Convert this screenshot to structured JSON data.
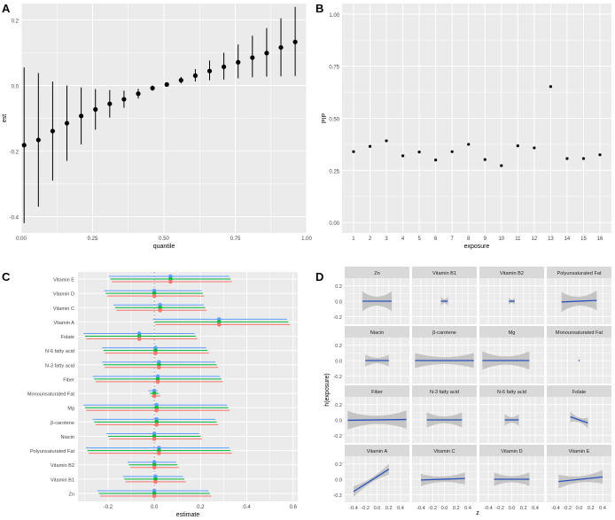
{
  "colors": {
    "panel_bg": "#ebebeb",
    "grid": "#ffffff",
    "strip_bg": "#d9d9d9",
    "point": "#000000",
    "line_blue": "#2a52be",
    "band": "#bdbdbd",
    "red": "#f8766d",
    "green": "#00ba38",
    "blue": "#619cff"
  },
  "chart_data": [
    {
      "panel": "A",
      "type": "scatter",
      "title": "",
      "xlabel": "quantile",
      "ylabel": "est",
      "xlim": [
        0,
        1
      ],
      "ylim": [
        -0.45,
        0.25
      ],
      "xticks": [
        "0.00",
        "0.25",
        "0.50",
        "0.75",
        "1.00"
      ],
      "yticks": [
        "-0.4",
        "-0.2",
        "0.0",
        "0.2"
      ],
      "points": [
        {
          "q": 0.01,
          "est": -0.182,
          "lo": -0.42,
          "hi": 0.055
        },
        {
          "q": 0.06,
          "est": -0.166,
          "lo": -0.37,
          "hi": 0.038
        },
        {
          "q": 0.11,
          "est": -0.139,
          "lo": -0.29,
          "hi": 0.012
        },
        {
          "q": 0.16,
          "est": -0.115,
          "lo": -0.23,
          "hi": 0.0
        },
        {
          "q": 0.21,
          "est": -0.093,
          "lo": -0.18,
          "hi": -0.006
        },
        {
          "q": 0.26,
          "est": -0.073,
          "lo": -0.135,
          "hi": -0.011
        },
        {
          "q": 0.31,
          "est": -0.056,
          "lo": -0.098,
          "hi": -0.014
        },
        {
          "q": 0.36,
          "est": -0.042,
          "lo": -0.068,
          "hi": -0.016
        },
        {
          "q": 0.41,
          "est": -0.025,
          "lo": -0.04,
          "hi": -0.01
        },
        {
          "q": 0.46,
          "est": -0.008,
          "lo": -0.016,
          "hi": 0.0
        },
        {
          "q": 0.51,
          "est": 0.003,
          "lo": 0.0,
          "hi": 0.006
        },
        {
          "q": 0.56,
          "est": 0.016,
          "lo": 0.006,
          "hi": 0.026
        },
        {
          "q": 0.61,
          "est": 0.03,
          "lo": 0.012,
          "hi": 0.05
        },
        {
          "q": 0.66,
          "est": 0.044,
          "lo": 0.016,
          "hi": 0.076
        },
        {
          "q": 0.71,
          "est": 0.057,
          "lo": 0.018,
          "hi": 0.1
        },
        {
          "q": 0.76,
          "est": 0.071,
          "lo": 0.022,
          "hi": 0.125
        },
        {
          "q": 0.81,
          "est": 0.085,
          "lo": 0.025,
          "hi": 0.152
        },
        {
          "q": 0.86,
          "est": 0.099,
          "lo": 0.027,
          "hi": 0.175
        },
        {
          "q": 0.91,
          "est": 0.116,
          "lo": 0.028,
          "hi": 0.205
        },
        {
          "q": 0.96,
          "est": 0.133,
          "lo": 0.029,
          "hi": 0.24
        }
      ]
    },
    {
      "panel": "B",
      "type": "scatter",
      "title": "",
      "xlabel": "exposure",
      "ylabel": "PIP",
      "xlim": [
        0.3,
        16.7
      ],
      "ylim": [
        -0.05,
        1.05
      ],
      "xticks": [
        "1",
        "2",
        "3",
        "4",
        "5",
        "6",
        "7",
        "8",
        "9",
        "10",
        "11",
        "12",
        "13",
        "14",
        "15",
        "16"
      ],
      "yticks": [
        "0.00",
        "0.25",
        "0.50",
        "0.75",
        "1.00"
      ],
      "values": [
        0.34,
        0.365,
        0.392,
        0.32,
        0.338,
        0.3,
        0.34,
        0.375,
        0.302,
        0.273,
        0.368,
        0.358,
        0.652,
        0.307,
        0.307,
        0.325
      ]
    },
    {
      "panel": "C",
      "type": "scatter",
      "title": "",
      "xlabel": "estimate",
      "ylabel": "",
      "xlim": [
        -0.33,
        0.62
      ],
      "xticks": [
        "-0.2",
        "0.0",
        "0.2",
        "0.4",
        "0.6"
      ],
      "categories": [
        "Vitamin E",
        "Vitamin D",
        "Vitamin C",
        "Vitamin A",
        "Folate",
        "N-6 fatty acid",
        "N-3 fatty acid",
        "Fiber",
        "Monounsaturated Fat",
        "Mg",
        "β-carotene",
        "Niacin",
        "Polyunsaturated Fat",
        "Vitamin B2",
        "Vitamin B1",
        "Zn"
      ],
      "est": [
        0.07,
        0.0,
        0.025,
        0.28,
        -0.065,
        0.005,
        0.02,
        0.015,
        0.0,
        0.01,
        0.01,
        0.0,
        0.02,
        0.0,
        0.005,
        0.0
      ],
      "lo": [
        -0.19,
        -0.21,
        -0.17,
        0.0,
        -0.3,
        -0.22,
        -0.22,
        -0.26,
        -0.02,
        -0.3,
        -0.26,
        -0.2,
        -0.29,
        -0.11,
        -0.13,
        -0.24
      ],
      "hi": [
        0.33,
        0.21,
        0.22,
        0.58,
        0.18,
        0.23,
        0.27,
        0.29,
        0.02,
        0.32,
        0.27,
        0.2,
        0.33,
        0.1,
        0.13,
        0.24
      ]
    },
    {
      "panel": "D",
      "type": "line",
      "title": "",
      "xlabel": "z",
      "ylabel": "h(exposure)",
      "xlim": [
        -0.55,
        0.55
      ],
      "ylim": [
        -0.3,
        0.3
      ],
      "xticks": [
        "-0.4",
        "-0.2",
        "0.0",
        "0.2",
        "0.4"
      ],
      "yticks": [
        "-0.2",
        "0.0",
        "0.2"
      ],
      "facets": [
        {
          "name": "Zn",
          "zmin": -0.25,
          "zmax": 0.25,
          "y0": 0.0,
          "y1": 0.0,
          "band": 0.13
        },
        {
          "name": "Vitamin B1",
          "zmin": -0.06,
          "zmax": 0.06,
          "y0": 0.0,
          "y1": 0.0,
          "band": 0.06
        },
        {
          "name": "Vitamin B2",
          "zmin": -0.05,
          "zmax": 0.05,
          "y0": 0.0,
          "y1": 0.0,
          "band": 0.05
        },
        {
          "name": "Polyunsaturated Fat",
          "zmin": -0.3,
          "zmax": 0.3,
          "y0": -0.01,
          "y1": 0.01,
          "band": 0.13
        },
        {
          "name": "Niacin",
          "zmin": -0.2,
          "zmax": 0.2,
          "y0": 0.0,
          "y1": 0.0,
          "band": 0.08
        },
        {
          "name": "β-carotene",
          "zmin": -0.5,
          "zmax": 0.5,
          "y0": 0.0,
          "y1": 0.0,
          "band": 0.1
        },
        {
          "name": "Mg",
          "zmin": -0.5,
          "zmax": 0.3,
          "y0": 0.0,
          "y1": 0.0,
          "band": 0.12
        },
        {
          "name": "Monounsaturated Fat",
          "zmin": -0.01,
          "zmax": 0.01,
          "y0": 0.0,
          "y1": 0.0,
          "band": 0.02
        },
        {
          "name": "Fiber",
          "zmin": -0.5,
          "zmax": 0.5,
          "y0": -0.005,
          "y1": 0.005,
          "band": 0.12
        },
        {
          "name": "N-3 fatty acid",
          "zmin": -0.3,
          "zmax": 0.3,
          "y0": 0.0,
          "y1": 0.0,
          "band": 0.1
        },
        {
          "name": "N-6 fatty acid",
          "zmin": -0.12,
          "zmax": 0.12,
          "y0": 0.0,
          "y1": 0.0,
          "band": 0.08
        },
        {
          "name": "Folate",
          "zmin": -0.15,
          "zmax": 0.15,
          "y0": 0.04,
          "y1": -0.04,
          "band": 0.07
        },
        {
          "name": "Vitamin A",
          "zmin": -0.4,
          "zmax": 0.2,
          "y0": -0.16,
          "y1": 0.13,
          "band": 0.07
        },
        {
          "name": "Vitamin C",
          "zmin": -0.4,
          "zmax": 0.35,
          "y0": -0.01,
          "y1": 0.01,
          "band": 0.08
        },
        {
          "name": "Vitamin D",
          "zmin": -0.3,
          "zmax": 0.3,
          "y0": 0.0,
          "y1": 0.0,
          "band": 0.09
        },
        {
          "name": "Vitamin E",
          "zmin": -0.35,
          "zmax": 0.4,
          "y0": -0.03,
          "y1": 0.03,
          "band": 0.09
        }
      ]
    }
  ]
}
